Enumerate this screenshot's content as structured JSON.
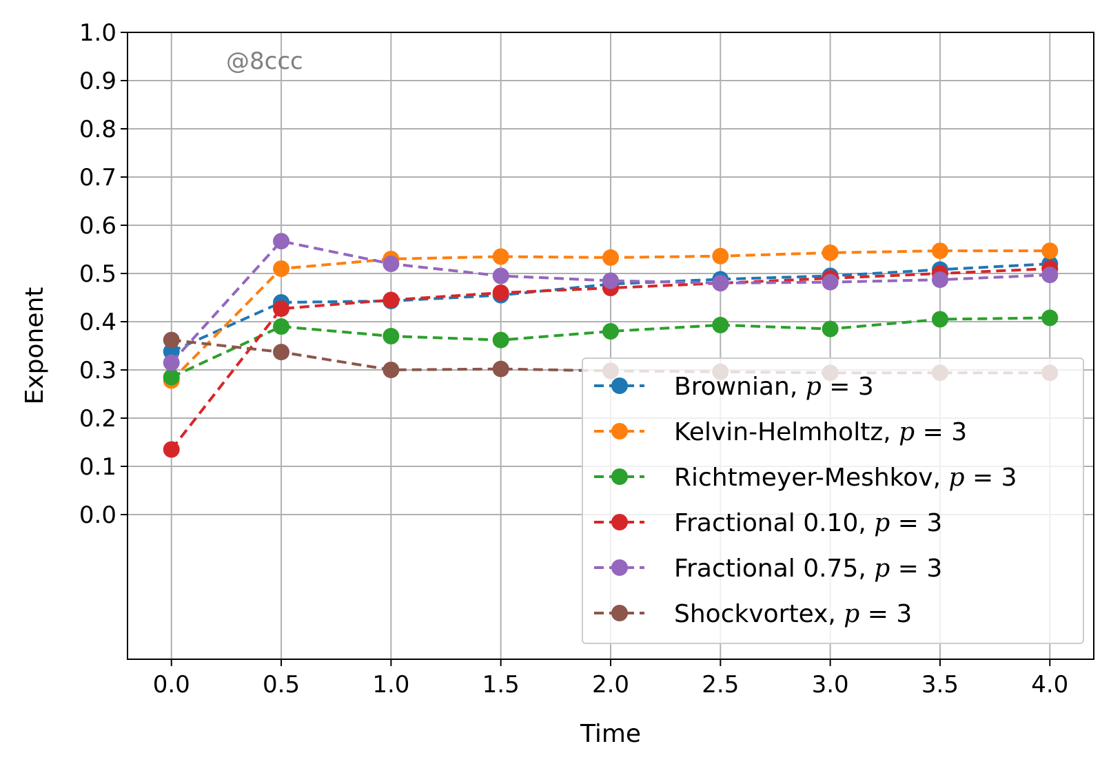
{
  "chart_data": {
    "type": "line",
    "xlabel": "Time",
    "ylabel": "Exponent",
    "xlim": [
      -0.2,
      4.2
    ],
    "ylim": [
      -0.3,
      1.0
    ],
    "x_ticks": [
      "0.0",
      "0.5",
      "1.0",
      "1.5",
      "2.0",
      "2.5",
      "3.0",
      "3.5",
      "4.0"
    ],
    "y_ticks": [
      "0.0",
      "0.1",
      "0.2",
      "0.3",
      "0.4",
      "0.5",
      "0.6",
      "0.7",
      "0.8",
      "0.9",
      "1.0"
    ],
    "grid": true,
    "legend_placement": "lower-right",
    "watermark": "@8ccc",
    "x": [
      0.0,
      0.5,
      1.0,
      1.5,
      2.0,
      2.5,
      3.0,
      3.5,
      4.0
    ],
    "series": [
      {
        "name": "Brownian, p = 3",
        "label_text": "Brownian, ",
        "color": "#1f77b4",
        "values": [
          0.338,
          0.44,
          0.443,
          0.455,
          0.478,
          0.488,
          0.495,
          0.508,
          0.52
        ]
      },
      {
        "name": "Kelvin-Helmholtz, p = 3",
        "label_text": "Kelvin-Helmholtz, ",
        "color": "#ff7f0e",
        "values": [
          0.278,
          0.51,
          0.53,
          0.535,
          0.533,
          0.536,
          0.543,
          0.547,
          0.547
        ]
      },
      {
        "name": "Richtmeyer-Meshkov, p = 3",
        "label_text": "Richtmeyer-Meshkov, ",
        "color": "#2ca02c",
        "values": [
          0.285,
          0.39,
          0.37,
          0.362,
          0.38,
          0.393,
          0.385,
          0.405,
          0.408
        ]
      },
      {
        "name": "Fractional 0.10, p = 3",
        "label_text": "Fractional 0.10, ",
        "color": "#d62728",
        "values": [
          0.135,
          0.427,
          0.445,
          0.46,
          0.47,
          0.48,
          0.49,
          0.5,
          0.51
        ]
      },
      {
        "name": "Fractional 0.75, p = 3",
        "label_text": "Fractional 0.75, ",
        "color": "#9467bd",
        "values": [
          0.315,
          0.567,
          0.52,
          0.495,
          0.485,
          0.48,
          0.482,
          0.487,
          0.497
        ]
      },
      {
        "name": "Shockvortex, p = 3",
        "label_text": "Shockvortex, ",
        "color": "#8c564b",
        "values": [
          0.362,
          0.337,
          0.3,
          0.302,
          0.298,
          0.296,
          0.294,
          0.294,
          0.294
        ]
      }
    ],
    "legend_suffix_var": "p",
    "legend_suffix_eq": " = 3"
  }
}
